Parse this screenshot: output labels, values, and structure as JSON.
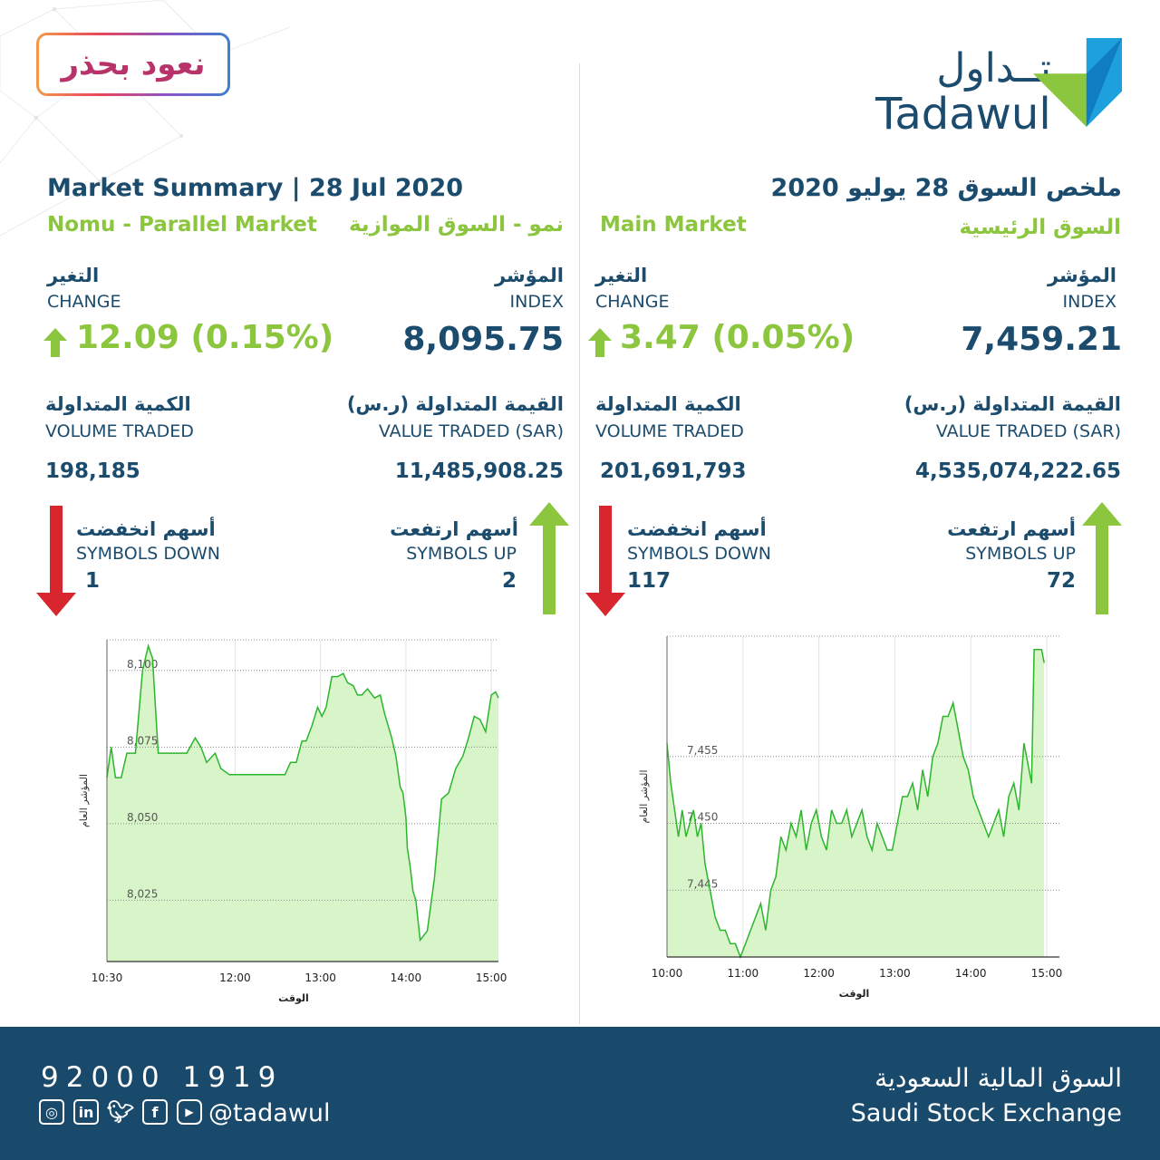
{
  "campaign_badge": "نعود بحذر",
  "logo": {
    "arabic": "تــداول",
    "english": "Tadawul"
  },
  "nomu": {
    "title": "Market Summary | 28 Jul 2020",
    "subtitle_en": "Nomu - Parallel Market",
    "subtitle_ar": "نمو - السوق الموازية",
    "change_ar": "التغير",
    "change_en": "CHANGE",
    "change_value": "12.09 (0.15%)",
    "index_ar": "المؤشر",
    "index_en": "INDEX",
    "index_value": "8,095.75",
    "volume_ar": "الكمية المتداولة",
    "volume_en": "VOLUME TRADED",
    "volume_value": "198,185",
    "value_ar": "القيمة المتداولة (ر.س)",
    "value_en": "VALUE TRADED (SAR)",
    "value_value": "11,485,908.25",
    "down_ar": "أسهم انخفضت",
    "down_en": "SYMBOLS DOWN",
    "down_value": "1",
    "up_ar": "أسهم ارتفعت",
    "up_en": "SYMBOLS UP",
    "up_value": "2"
  },
  "main": {
    "title": "ملخص السوق 28 يوليو 2020",
    "subtitle_en": "Main Market",
    "subtitle_ar": "السوق الرئيسية",
    "change_ar": "التغير",
    "change_en": "CHANGE",
    "change_value": "3.47 (0.05%)",
    "index_ar": "المؤشر",
    "index_en": "INDEX",
    "index_value": "7,459.21",
    "volume_ar": "الكمية المتداولة",
    "volume_en": "VOLUME TRADED",
    "volume_value": "201,691,793",
    "value_ar": "القيمة المتداولة (ر.س)",
    "value_en": "VALUE TRADED (SAR)",
    "value_value": "4,535,074,222.65",
    "down_ar": "أسهم انخفضت",
    "down_en": "SYMBOLS DOWN",
    "down_value": "117",
    "up_ar": "أسهم ارتفعت",
    "up_en": "SYMBOLS UP",
    "up_value": "72"
  },
  "footer": {
    "phone": "92000 1919",
    "handle": "@tadawul",
    "exchange_ar": "السوق المالية السعودية",
    "exchange_en": "Saudi Stock Exchange"
  },
  "colors": {
    "navy": "#1b4b6d",
    "green": "#8cc63f",
    "red": "#d7262e",
    "chart_line": "#2db52d",
    "chart_fill": "#d7f5c8"
  },
  "chart_data": [
    {
      "type": "area",
      "name": "nomu",
      "xlabel": "الوقت",
      "ylabel": "المؤشر العام",
      "ylim": [
        8005,
        8110
      ],
      "xlim_minutes": [
        630,
        905
      ],
      "xticks": [
        {
          "m": 630,
          "label": "10:30"
        },
        {
          "m": 720,
          "label": "12:00"
        },
        {
          "m": 780,
          "label": "13:00"
        },
        {
          "m": 840,
          "label": "14:00"
        },
        {
          "m": 900,
          "label": "15:00"
        }
      ],
      "yticks": [
        {
          "v": 8100,
          "label": "8,100"
        },
        {
          "v": 8075,
          "label": "8,075"
        },
        {
          "v": 8050,
          "label": "8,050"
        },
        {
          "v": 8025,
          "label": "8,025"
        }
      ],
      "points": [
        [
          630,
          8065
        ],
        [
          633,
          8075
        ],
        [
          636,
          8065
        ],
        [
          640,
          8065
        ],
        [
          644,
          8073
        ],
        [
          650,
          8073
        ],
        [
          655,
          8100
        ],
        [
          659,
          8108
        ],
        [
          662,
          8104
        ],
        [
          666,
          8073
        ],
        [
          676,
          8073
        ],
        [
          686,
          8073
        ],
        [
          692,
          8078
        ],
        [
          696,
          8075
        ],
        [
          700,
          8070
        ],
        [
          706,
          8073
        ],
        [
          710,
          8068
        ],
        [
          716,
          8066
        ],
        [
          720,
          8066
        ],
        [
          724,
          8066
        ],
        [
          730,
          8066
        ],
        [
          736,
          8066
        ],
        [
          741,
          8066
        ],
        [
          746,
          8066
        ],
        [
          750,
          8066
        ],
        [
          755,
          8066
        ],
        [
          759,
          8070
        ],
        [
          763,
          8070
        ],
        [
          767,
          8077
        ],
        [
          770,
          8077
        ],
        [
          774,
          8082
        ],
        [
          778,
          8088
        ],
        [
          781,
          8085
        ],
        [
          784,
          8088
        ],
        [
          788,
          8098
        ],
        [
          792,
          8098
        ],
        [
          796,
          8099
        ],
        [
          799,
          8096
        ],
        [
          803,
          8095
        ],
        [
          806,
          8092
        ],
        [
          809,
          8092
        ],
        [
          813,
          8094
        ],
        [
          818,
          8091
        ],
        [
          822,
          8092
        ],
        [
          825,
          8086
        ],
        [
          830,
          8078
        ],
        [
          833,
          8072
        ],
        [
          836,
          8062
        ],
        [
          838,
          8060
        ],
        [
          840,
          8052
        ],
        [
          841,
          8042
        ],
        [
          843,
          8036
        ],
        [
          845,
          8028
        ],
        [
          847,
          8025
        ],
        [
          850,
          8012
        ],
        [
          855,
          8015
        ],
        [
          860,
          8032
        ],
        [
          865,
          8058
        ],
        [
          870,
          8060
        ],
        [
          875,
          8068
        ],
        [
          880,
          8072
        ],
        [
          884,
          8078
        ],
        [
          888,
          8085
        ],
        [
          892,
          8084
        ],
        [
          896,
          8080
        ],
        [
          900,
          8092
        ],
        [
          903,
          8093
        ],
        [
          905,
          8091
        ]
      ]
    },
    {
      "type": "area",
      "name": "main",
      "xlabel": "الوقت",
      "ylabel": "المؤشر العام",
      "ylim": [
        7440,
        7464
      ],
      "xlim_minutes": [
        600,
        910
      ],
      "xticks": [
        {
          "m": 600,
          "label": "10:00"
        },
        {
          "m": 660,
          "label": "11:00"
        },
        {
          "m": 720,
          "label": "12:00"
        },
        {
          "m": 780,
          "label": "13:00"
        },
        {
          "m": 840,
          "label": "14:00"
        },
        {
          "m": 900,
          "label": "15:00"
        }
      ],
      "yticks": [
        {
          "v": 7455,
          "label": "7,455"
        },
        {
          "v": 7450,
          "label": "7,450"
        },
        {
          "v": 7445,
          "label": "7,445"
        }
      ],
      "points": [
        [
          600,
          7456
        ],
        [
          603,
          7453
        ],
        [
          606,
          7451
        ],
        [
          609,
          7449
        ],
        [
          612,
          7451
        ],
        [
          615,
          7449
        ],
        [
          618,
          7450
        ],
        [
          621,
          7451
        ],
        [
          624,
          7449
        ],
        [
          627,
          7450
        ],
        [
          630,
          7447
        ],
        [
          634,
          7445
        ],
        [
          638,
          7443
        ],
        [
          642,
          7442
        ],
        [
          646,
          7442
        ],
        [
          650,
          7441
        ],
        [
          654,
          7441
        ],
        [
          658,
          7440
        ],
        [
          662,
          7441
        ],
        [
          666,
          7442
        ],
        [
          670,
          7443
        ],
        [
          674,
          7444
        ],
        [
          678,
          7442
        ],
        [
          682,
          7445
        ],
        [
          686,
          7446
        ],
        [
          690,
          7449
        ],
        [
          694,
          7448
        ],
        [
          698,
          7450
        ],
        [
          702,
          7449
        ],
        [
          706,
          7451
        ],
        [
          710,
          7448
        ],
        [
          714,
          7450
        ],
        [
          718,
          7451
        ],
        [
          722,
          7449
        ],
        [
          726,
          7448
        ],
        [
          730,
          7451
        ],
        [
          734,
          7450
        ],
        [
          738,
          7450
        ],
        [
          742,
          7451
        ],
        [
          746,
          7449
        ],
        [
          750,
          7450
        ],
        [
          754,
          7451
        ],
        [
          758,
          7449
        ],
        [
          762,
          7448
        ],
        [
          766,
          7450
        ],
        [
          770,
          7449
        ],
        [
          774,
          7448
        ],
        [
          778,
          7448
        ],
        [
          782,
          7450
        ],
        [
          786,
          7452
        ],
        [
          790,
          7452
        ],
        [
          794,
          7453
        ],
        [
          798,
          7451
        ],
        [
          802,
          7454
        ],
        [
          806,
          7452
        ],
        [
          810,
          7455
        ],
        [
          814,
          7456
        ],
        [
          818,
          7458
        ],
        [
          822,
          7458
        ],
        [
          826,
          7459
        ],
        [
          830,
          7457
        ],
        [
          834,
          7455
        ],
        [
          838,
          7454
        ],
        [
          842,
          7452
        ],
        [
          846,
          7451
        ],
        [
          850,
          7450
        ],
        [
          854,
          7449
        ],
        [
          858,
          7450
        ],
        [
          862,
          7451
        ],
        [
          866,
          7449
        ],
        [
          870,
          7452
        ],
        [
          874,
          7453
        ],
        [
          878,
          7451
        ],
        [
          882,
          7456
        ],
        [
          886,
          7454
        ],
        [
          888,
          7453
        ],
        [
          890,
          7463
        ],
        [
          896,
          7463
        ],
        [
          898,
          7462
        ]
      ]
    }
  ]
}
